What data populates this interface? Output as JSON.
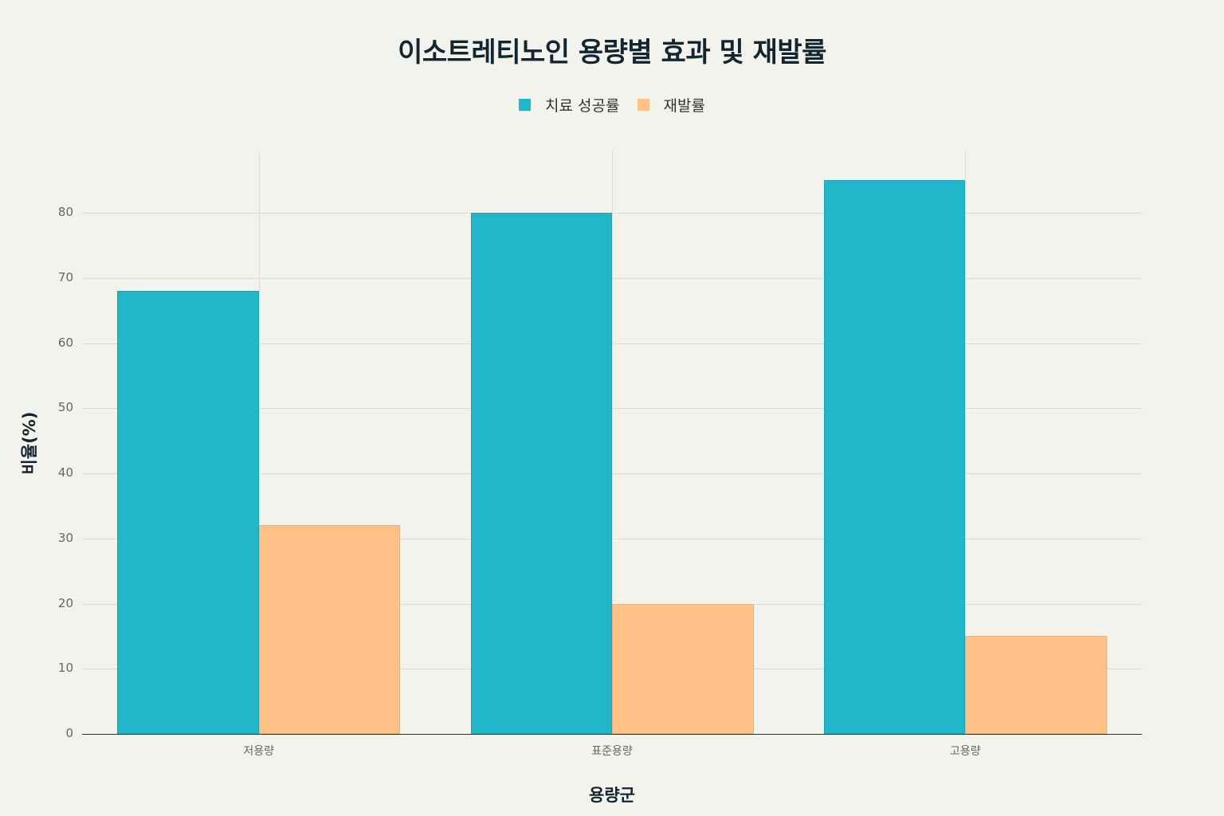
{
  "title": "이소트레티노인 용량별 효과 및 재발률",
  "legend": [
    {
      "label": "치료 성공률",
      "color": "#20b7cb"
    },
    {
      "label": "재발률",
      "color": "#ffc185"
    }
  ],
  "axes": {
    "xlabel": "용량군",
    "ylabel": "비율(%)",
    "yticks": [
      "0",
      "10",
      "20",
      "30",
      "40",
      "50",
      "60",
      "70",
      "80"
    ]
  },
  "chart_data": {
    "type": "bar",
    "title": "이소트레티노인 용량별 효과 및 재발률",
    "categories": [
      "저용량",
      "표준용량",
      "고용량"
    ],
    "series": [
      {
        "name": "치료 성공률",
        "values": [
          68,
          80,
          85
        ],
        "color": "#20b7cb"
      },
      {
        "name": "재발률",
        "values": [
          32,
          20,
          15
        ],
        "color": "#ffc185"
      }
    ],
    "xlabel": "용량군",
    "ylabel": "비율(%)",
    "ylim": [
      0,
      89.4
    ],
    "yticks": [
      0,
      10,
      20,
      30,
      40,
      50,
      60,
      70,
      80
    ],
    "grid": true,
    "legend_position": "top-center"
  }
}
